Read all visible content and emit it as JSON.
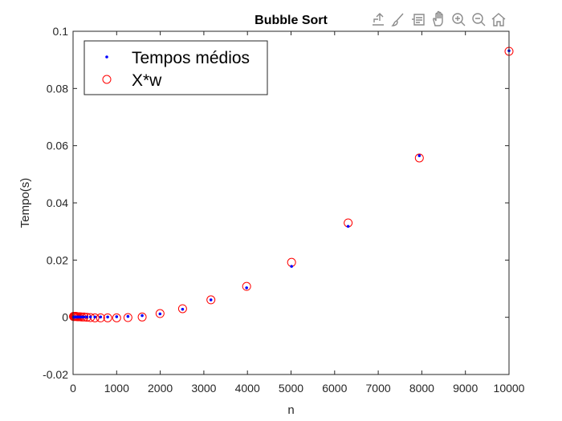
{
  "toolbar": {
    "icons": [
      "export-icon",
      "brush-icon",
      "data-tips-icon",
      "pan-icon",
      "zoom-in-icon",
      "zoom-out-icon",
      "home-icon"
    ]
  },
  "chart_data": {
    "type": "scatter",
    "title": "Bubble Sort",
    "xlabel": "n",
    "ylabel": "Tempo(s)",
    "xlim": [
      0,
      10000
    ],
    "ylim": [
      -0.02,
      0.1
    ],
    "xticks": [
      "0",
      "1000",
      "2000",
      "3000",
      "4000",
      "5000",
      "6000",
      "7000",
      "8000",
      "9000",
      "10000"
    ],
    "yticks": [
      "-0.02",
      "0",
      "0.02",
      "0.04",
      "0.06",
      "0.08",
      "0.1"
    ],
    "grid": false,
    "legend_position": "top-left",
    "series": [
      {
        "name": "Tempos médios",
        "marker": "dot",
        "color": "#0000ff",
        "x": [
          10,
          13,
          16,
          20,
          25,
          32,
          40,
          50,
          63,
          79,
          100,
          126,
          158,
          200,
          251,
          316,
          398,
          501,
          631,
          794,
          1000,
          1259,
          1585,
          1995,
          2512,
          3162,
          3981,
          5012,
          6310,
          7943,
          10000
        ],
        "y": [
          0.0001,
          0.0001,
          0.0001,
          0.0001,
          0.0001,
          0.0001,
          0.0001,
          0.0001,
          0.0001,
          0.0001,
          0.0001,
          0.0001,
          0.0001,
          0.0001,
          0.0001,
          0.0001,
          0.0001,
          0.0001,
          0.0001,
          0.0001,
          0.0002,
          0.0003,
          0.0006,
          0.0012,
          0.0028,
          0.0061,
          0.0103,
          0.0178,
          0.0318,
          0.0565,
          0.0932
        ]
      },
      {
        "name": "X*w",
        "marker": "circle",
        "color": "#ff0000",
        "x": [
          10,
          13,
          16,
          20,
          25,
          32,
          40,
          50,
          63,
          79,
          100,
          126,
          158,
          200,
          251,
          316,
          398,
          501,
          631,
          794,
          1000,
          1259,
          1585,
          1995,
          2512,
          3162,
          3981,
          5012,
          6310,
          7943,
          10000
        ],
        "y": [
          0.0003,
          0.0003,
          0.0003,
          0.0003,
          0.0003,
          0.0003,
          0.0003,
          0.0003,
          0.0003,
          0.0003,
          0.0002,
          0.0002,
          0.0002,
          0.0001,
          0.0001,
          0.0,
          -0.0001,
          -0.0002,
          -0.0002,
          -0.0002,
          -0.0002,
          -0.0001,
          0.0001,
          0.0013,
          0.003,
          0.0061,
          0.0108,
          0.0192,
          0.033,
          0.0557,
          0.093
        ]
      }
    ]
  }
}
